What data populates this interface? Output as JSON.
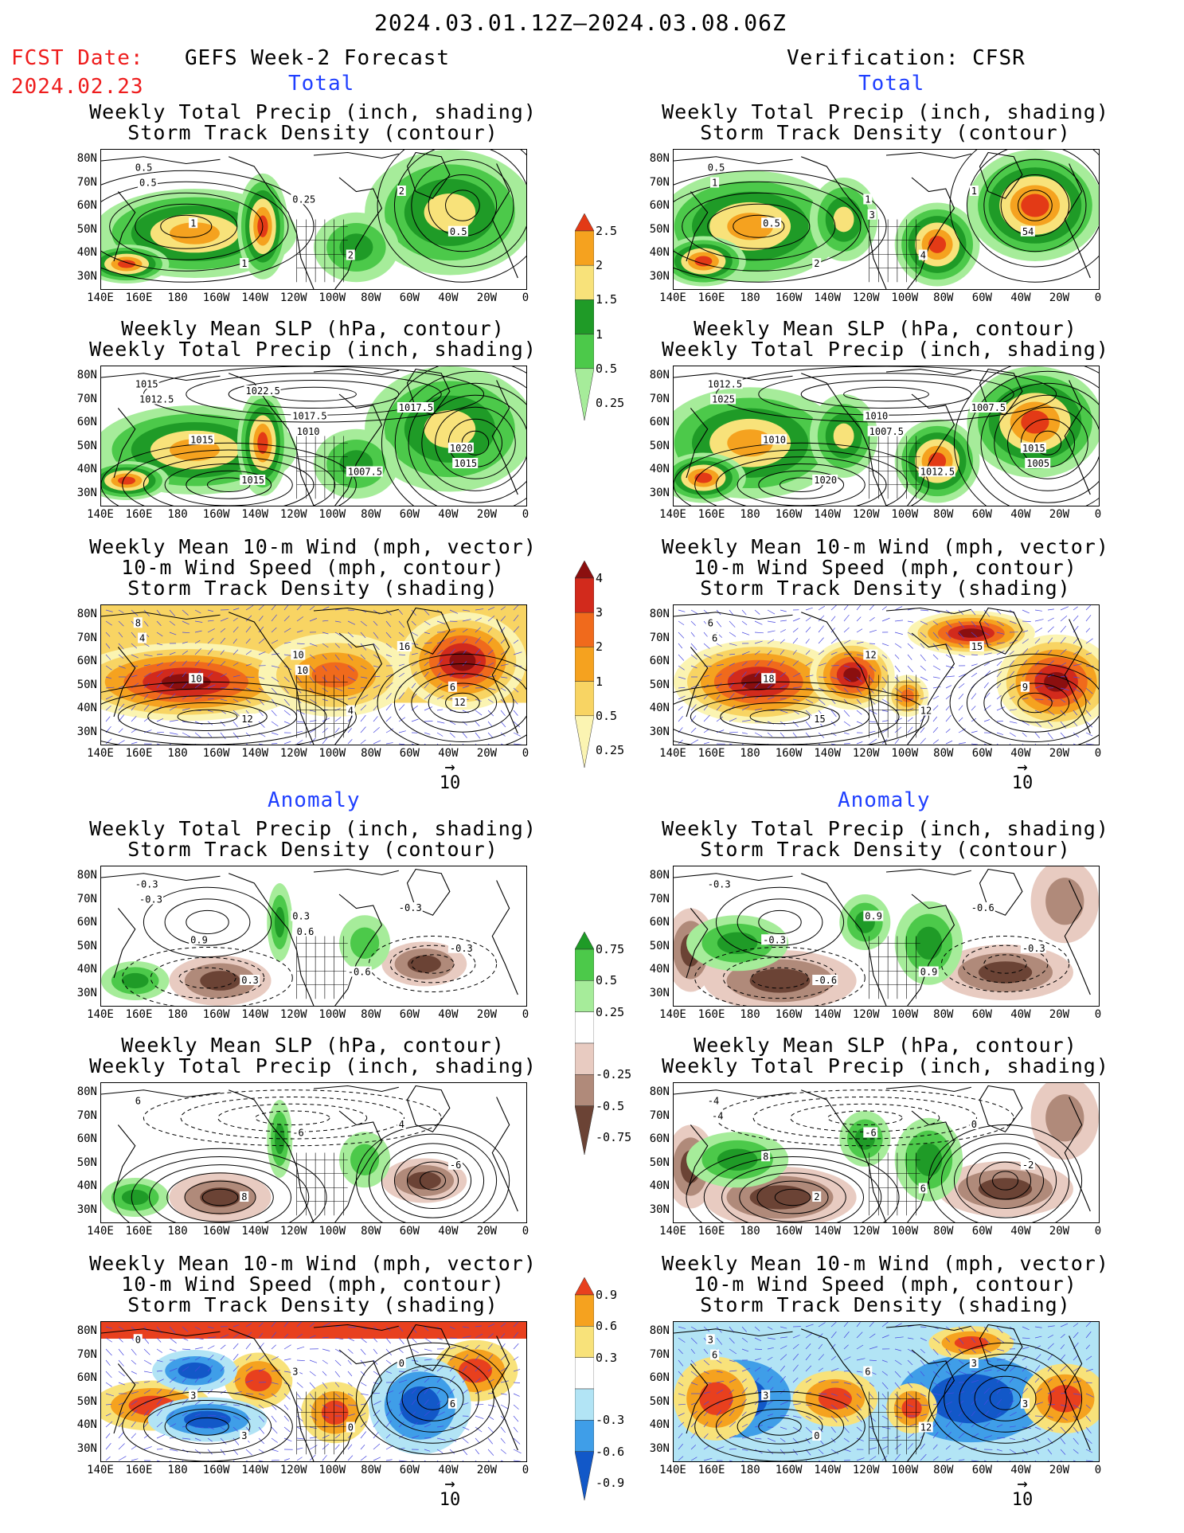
{
  "header": {
    "date_range": "2024.03.01.12Z–2024.03.08.06Z",
    "fcst_label": "FCST Date:",
    "fcst_date": "2024.02.23",
    "left_title": "GEFS Week-2 Forecast",
    "right_title": "Verification: CFSR",
    "total_label": "Total",
    "anomaly_label": "Anomaly"
  },
  "panel_titles": {
    "precip_storm": [
      "Weekly Total Precip (inch, shading)",
      "Storm Track Density (contour)"
    ],
    "slp_precip": [
      "Weekly Mean SLP (hPa, contour)",
      "Weekly Total Precip (inch, shading)"
    ],
    "wind_storm": [
      "Weekly Mean 10-m Wind (mph, vector)",
      "10-m Wind Speed (mph, contour)",
      "Storm Track Density (shading)"
    ]
  },
  "axes": {
    "lat_labels": [
      "80N",
      "70N",
      "60N",
      "50N",
      "40N",
      "30N"
    ],
    "lon_labels": [
      "140E",
      "160E",
      "180",
      "160W",
      "140W",
      "120W",
      "100W",
      "80W",
      "60W",
      "40W",
      "20W",
      "0"
    ]
  },
  "vector_ref": "10",
  "colorbars": {
    "precip_total": {
      "labels": [
        "2.5",
        "2",
        "1.5",
        "1",
        "0.5",
        "0.25"
      ],
      "colors": [
        "#e33a16",
        "#f5a21f",
        "#f8e27a",
        "#1f9b27",
        "#4cc94a",
        "#a6ec9a"
      ]
    },
    "storm_total": {
      "labels": [
        "4",
        "3",
        "2",
        "1",
        "0.5",
        "0.25"
      ],
      "colors": [
        "#8b0f0f",
        "#d22a1c",
        "#f06a1c",
        "#f5a21f",
        "#f8d463",
        "#fbf4b2"
      ]
    },
    "precip_anom": {
      "labels": [
        "0.75",
        "0.5",
        "0.25",
        "-0.25",
        "-0.5",
        "-0.75"
      ],
      "colors": [
        "#1f9b27",
        "#4cc94a",
        "#a6ec9a",
        "#ffffff",
        "#e8cbc1",
        "#b08a7a",
        "#6b4335"
      ]
    },
    "storm_anom": {
      "labels": [
        "0.9",
        "0.6",
        "0.3",
        "-0.3",
        "-0.6",
        "-0.9"
      ],
      "colors": [
        "#e8401e",
        "#f5a21f",
        "#f8e27a",
        "#ffffff",
        "#b2e4f5",
        "#3f9ee8",
        "#1258c8"
      ]
    }
  },
  "contour_labels": {
    "gefs_total_precip": [
      "0.5",
      "0.25",
      "0.5",
      "1",
      "2",
      "1",
      "2",
      "0.5"
    ],
    "cfsr_total_precip": [
      "0.5",
      "1",
      "54",
      "2",
      "1",
      "0.5",
      "4",
      "1",
      "3"
    ],
    "gefs_total_slp": [
      "1015",
      "1017.5",
      "1020",
      "1015",
      "1017.5",
      "1015",
      "1007.5",
      "1012.5",
      "1010",
      "1015",
      "1022.5"
    ],
    "cfsr_total_slp": [
      "1012.5",
      "1010",
      "1015",
      "1020",
      "1007.5",
      "1010",
      "1012.5",
      "1025",
      "1007.5",
      "1005"
    ],
    "gefs_total_wind": [
      "8",
      "10",
      "6",
      "12",
      "16",
      "10",
      "4",
      "4",
      "10",
      "12"
    ],
    "cfsr_total_wind": [
      "6",
      "12",
      "9",
      "15",
      "15",
      "18",
      "12",
      "6"
    ],
    "gefs_anom_precip": [
      "-0.3",
      "0.3",
      "-0.3",
      "0.3",
      "-0.3",
      "0.9",
      "-0.6",
      "-0.3",
      "0.6"
    ],
    "cfsr_anom_precip": [
      "-0.3",
      "0.9",
      "-0.3",
      "-0.6",
      "-0.6",
      "-0.3",
      "0.9"
    ],
    "gefs_anom_slp": [
      "6",
      "-6",
      "-6",
      "8",
      "4"
    ],
    "cfsr_anom_slp": [
      "-4",
      "-6",
      "-2",
      "2",
      "0",
      "8",
      "6",
      "-4"
    ],
    "gefs_anom_wind": [
      "0",
      "3",
      "6",
      "3",
      "0",
      "3",
      "0"
    ],
    "cfsr_anom_wind": [
      "3",
      "6",
      "3",
      "0",
      "3",
      "3",
      "12",
      "6"
    ]
  }
}
